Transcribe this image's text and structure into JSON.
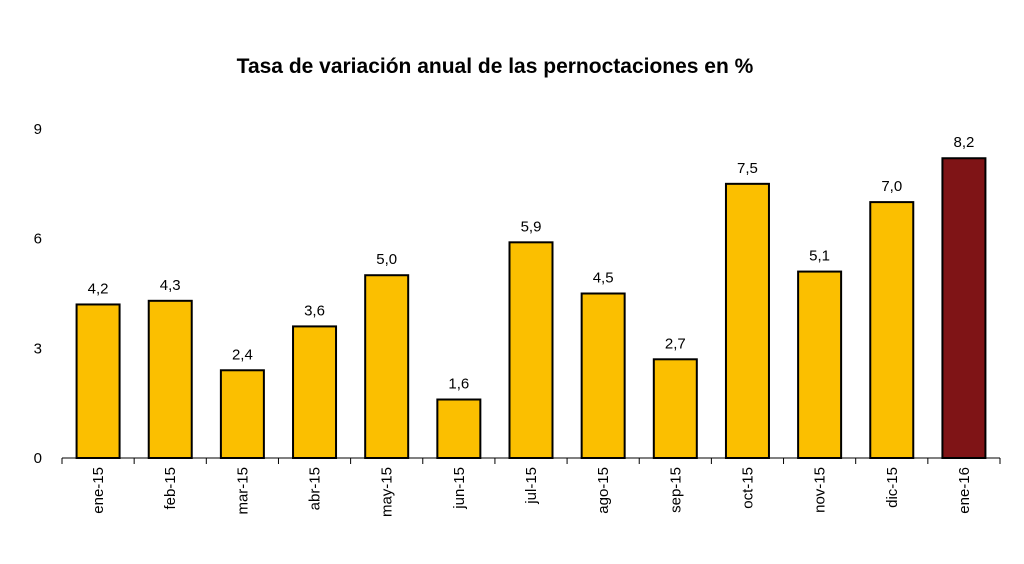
{
  "chart_data": {
    "type": "bar",
    "title": "Tasa de variación anual de las pernoctaciones en %",
    "xlabel": "",
    "ylabel": "",
    "categories": [
      "ene-15",
      "feb-15",
      "mar-15",
      "abr-15",
      "may-15",
      "jun-15",
      "jul-15",
      "ago-15",
      "sep-15",
      "oct-15",
      "nov-15",
      "dic-15",
      "ene-16"
    ],
    "values": [
      4.2,
      4.3,
      2.4,
      3.6,
      5.0,
      1.6,
      5.9,
      4.5,
      2.7,
      7.5,
      5.1,
      7.0,
      8.2
    ],
    "value_labels": [
      "4,2",
      "4,3",
      "2,4",
      "3,6",
      "5,0",
      "1,6",
      "5,9",
      "4,5",
      "2,7",
      "7,5",
      "5,1",
      "7,0",
      "8,2"
    ],
    "ylim": [
      0,
      9
    ],
    "yticks": [
      "0",
      "3",
      "6",
      "9"
    ],
    "grid": false,
    "legend": "none",
    "colors": {
      "bar": "#FBBF00",
      "highlight": "#7F1416",
      "outline": "#000000"
    },
    "highlight_index": 12
  }
}
